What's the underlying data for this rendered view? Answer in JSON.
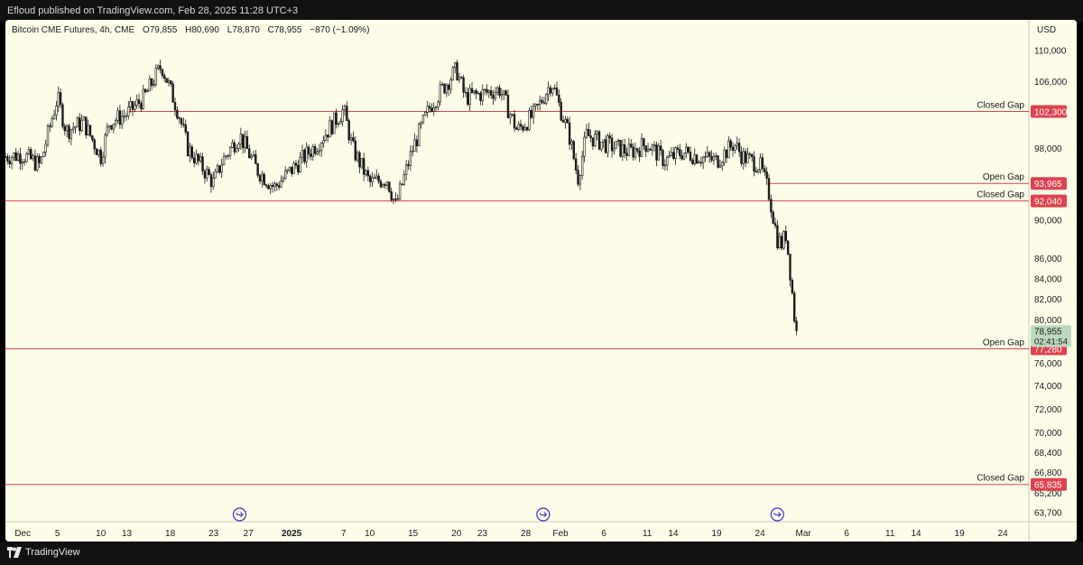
{
  "header": {
    "published": "Efloud published on TradingView.com, Feb 28, 2025 11:28 UTC+3"
  },
  "footer": {
    "brand": "TradingView",
    "logo_icon": "tradingview-logo-icon"
  },
  "colors": {
    "background": "#fefdea",
    "candle": "#1a1a1a",
    "level_line": "#e0424f",
    "level_label_bg": "#e0424f",
    "price_label_bg": "#bcd9bf"
  },
  "legend": {
    "symbol": "Bitcoin CME Futures, 4h, CME",
    "open_label": "O",
    "open": "79,855",
    "high_label": "H",
    "high": "80,690",
    "low_label": "L",
    "low": "78,870",
    "close_label": "C",
    "close": "78,955",
    "change": "−870 (−1.09%)"
  },
  "chart_data": {
    "type": "candlestick",
    "title": "Bitcoin CME Futures, 4h, CME",
    "currency": "USD",
    "scale": "log",
    "ylim": [
      63000,
      114000
    ],
    "xlim": [
      "2024-11-29",
      "2025-03-27"
    ],
    "y_ticks": [
      {
        "value": 110000,
        "label": "110,000"
      },
      {
        "value": 106000,
        "label": "106,000"
      },
      {
        "value": 98000,
        "label": "98,000"
      },
      {
        "value": 90000,
        "label": "90,000"
      },
      {
        "value": 86000,
        "label": "86,000"
      },
      {
        "value": 84000,
        "label": "84,000"
      },
      {
        "value": 82000,
        "label": "82,000"
      },
      {
        "value": 80000,
        "label": "80,000"
      },
      {
        "value": 76000,
        "label": "76,000"
      },
      {
        "value": 74000,
        "label": "74,000"
      },
      {
        "value": 72000,
        "label": "72,000"
      },
      {
        "value": 70000,
        "label": "70,000"
      },
      {
        "value": 68400,
        "label": "68,400"
      },
      {
        "value": 66800,
        "label": "66,800"
      },
      {
        "value": 65200,
        "label": "65,200"
      },
      {
        "value": 63700,
        "label": "63,700"
      }
    ],
    "x_ticks": [
      {
        "date": "2024-12-01",
        "label": "Dec",
        "bold": false
      },
      {
        "date": "2024-12-05",
        "label": "5",
        "bold": false
      },
      {
        "date": "2024-12-10",
        "label": "10",
        "bold": false
      },
      {
        "date": "2024-12-13",
        "label": "13",
        "bold": false
      },
      {
        "date": "2024-12-18",
        "label": "18",
        "bold": false
      },
      {
        "date": "2024-12-23",
        "label": "23",
        "bold": false
      },
      {
        "date": "2024-12-27",
        "label": "27",
        "bold": false
      },
      {
        "date": "2025-01-01",
        "label": "2025",
        "bold": true
      },
      {
        "date": "2025-01-07",
        "label": "7",
        "bold": false
      },
      {
        "date": "2025-01-10",
        "label": "10",
        "bold": false
      },
      {
        "date": "2025-01-15",
        "label": "15",
        "bold": false
      },
      {
        "date": "2025-01-20",
        "label": "20",
        "bold": false
      },
      {
        "date": "2025-01-23",
        "label": "23",
        "bold": false
      },
      {
        "date": "2025-01-28",
        "label": "28",
        "bold": false
      },
      {
        "date": "2025-02-01",
        "label": "Feb",
        "bold": false
      },
      {
        "date": "2025-02-06",
        "label": "6",
        "bold": false
      },
      {
        "date": "2025-02-11",
        "label": "11",
        "bold": false
      },
      {
        "date": "2025-02-14",
        "label": "14",
        "bold": false
      },
      {
        "date": "2025-02-19",
        "label": "19",
        "bold": false
      },
      {
        "date": "2025-02-24",
        "label": "24",
        "bold": false
      },
      {
        "date": "2025-03-01",
        "label": "Mar",
        "bold": false
      },
      {
        "date": "2025-03-06",
        "label": "6",
        "bold": false
      },
      {
        "date": "2025-03-11",
        "label": "11",
        "bold": false
      },
      {
        "date": "2025-03-14",
        "label": "14",
        "bold": false
      },
      {
        "date": "2025-03-19",
        "label": "19",
        "bold": false
      },
      {
        "date": "2025-03-24",
        "label": "24",
        "bold": false
      }
    ],
    "levels": [
      {
        "price": 102300,
        "label": "Closed Gap",
        "value_label": "102,300",
        "start": "2024-12-13"
      },
      {
        "price": 93965,
        "label": "Open Gap",
        "value_label": "93,965",
        "start": "2025-02-25"
      },
      {
        "price": 92040,
        "label": "Closed Gap",
        "value_label": "92,040",
        "start": "2024-11-29"
      },
      {
        "price": 77280,
        "label": "Open Gap",
        "value_label": "77,280",
        "start": "2024-11-29"
      },
      {
        "price": 65835,
        "label": "Closed Gap",
        "value_label": "65,835",
        "start": "2024-11-29"
      }
    ],
    "last_price": {
      "value": 78955,
      "label": "78,955",
      "countdown": "02:41:54"
    },
    "event_markers": [
      {
        "date": "2024-12-26",
        "icon": "arrow-circle-icon"
      },
      {
        "date": "2025-01-30",
        "icon": "arrow-circle-icon"
      },
      {
        "date": "2025-02-26",
        "icon": "arrow-circle-icon"
      }
    ],
    "price_path": [
      {
        "date": "2024-11-29",
        "price": 97000
      },
      {
        "date": "2024-12-01",
        "price": 97200
      },
      {
        "date": "2024-12-03",
        "price": 96000
      },
      {
        "date": "2024-12-05",
        "price": 104000
      },
      {
        "date": "2024-12-06",
        "price": 100000
      },
      {
        "date": "2024-12-08",
        "price": 101000
      },
      {
        "date": "2024-12-10",
        "price": 97000
      },
      {
        "date": "2024-12-11",
        "price": 101000
      },
      {
        "date": "2024-12-13",
        "price": 102000
      },
      {
        "date": "2024-12-15",
        "price": 104000
      },
      {
        "date": "2024-12-17",
        "price": 108000
      },
      {
        "date": "2024-12-19",
        "price": 102000
      },
      {
        "date": "2024-12-20",
        "price": 98000
      },
      {
        "date": "2024-12-23",
        "price": 94000
      },
      {
        "date": "2024-12-24",
        "price": 96500
      },
      {
        "date": "2024-12-26",
        "price": 99500
      },
      {
        "date": "2024-12-28",
        "price": 95500
      },
      {
        "date": "2024-12-30",
        "price": 93500
      },
      {
        "date": "2025-01-01",
        "price": 95500
      },
      {
        "date": "2025-01-04",
        "price": 98500
      },
      {
        "date": "2025-01-07",
        "price": 102500
      },
      {
        "date": "2025-01-08",
        "price": 98000
      },
      {
        "date": "2025-01-10",
        "price": 94000
      },
      {
        "date": "2025-01-12",
        "price": 94500
      },
      {
        "date": "2025-01-13",
        "price": 91500
      },
      {
        "date": "2025-01-15",
        "price": 98000
      },
      {
        "date": "2025-01-17",
        "price": 103000
      },
      {
        "date": "2025-01-20",
        "price": 107500
      },
      {
        "date": "2025-01-21",
        "price": 104000
      },
      {
        "date": "2025-01-23",
        "price": 104500
      },
      {
        "date": "2025-01-25",
        "price": 105000
      },
      {
        "date": "2025-01-27",
        "price": 100000
      },
      {
        "date": "2025-01-29",
        "price": 102000
      },
      {
        "date": "2025-01-30",
        "price": 104000
      },
      {
        "date": "2025-01-31",
        "price": 106000
      },
      {
        "date": "2025-02-01",
        "price": 102500
      },
      {
        "date": "2025-02-02",
        "price": 99500
      },
      {
        "date": "2025-02-03",
        "price": 94500
      },
      {
        "date": "2025-02-04",
        "price": 99500
      },
      {
        "date": "2025-02-06",
        "price": 98500
      },
      {
        "date": "2025-02-09",
        "price": 97500
      },
      {
        "date": "2025-02-11",
        "price": 98500
      },
      {
        "date": "2025-02-13",
        "price": 96500
      },
      {
        "date": "2025-02-15",
        "price": 97500
      },
      {
        "date": "2025-02-17",
        "price": 97000
      },
      {
        "date": "2025-02-19",
        "price": 96500
      },
      {
        "date": "2025-02-21",
        "price": 98500
      },
      {
        "date": "2025-02-22",
        "price": 97000
      },
      {
        "date": "2025-02-24",
        "price": 96000
      },
      {
        "date": "2025-02-25",
        "price": 93000
      },
      {
        "date": "2025-02-26",
        "price": 88000
      },
      {
        "date": "2025-02-26T12:00",
        "price": 87500
      },
      {
        "date": "2025-02-27",
        "price": 88500
      },
      {
        "date": "2025-02-27T12:00",
        "price": 84500
      },
      {
        "date": "2025-02-28",
        "price": 80000
      },
      {
        "date": "2025-02-28T08:00",
        "price": 78955
      }
    ]
  }
}
